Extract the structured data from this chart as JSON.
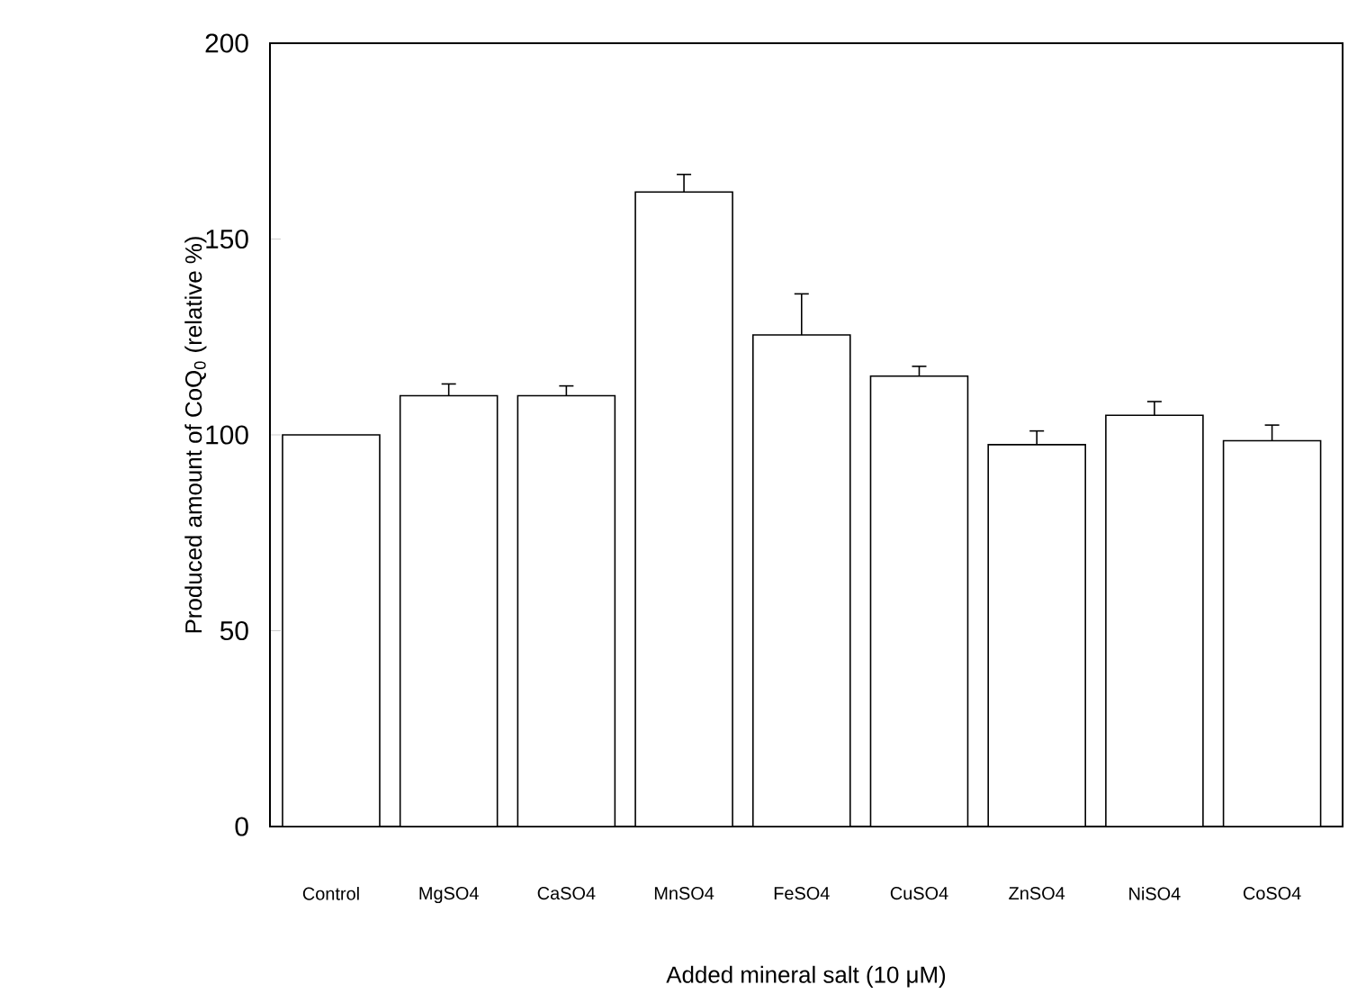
{
  "chart_data": {
    "type": "bar",
    "xlabel": "Added mineral salt (10 μM)",
    "ylabel": "Produced amount of CoQ$_{0}$ (relative %)",
    "categories": [
      "Control",
      "MgSO4",
      "CaSO4",
      "MnSO4",
      "FeSO4",
      "CuSO4",
      "ZnSO4",
      "NiSO4",
      "CoSO4"
    ],
    "values": [
      100,
      110,
      110,
      162,
      125.5,
      115,
      97.5,
      105,
      98.5
    ],
    "errors": [
      null,
      3,
      2.5,
      4.5,
      10.5,
      2.5,
      3.5,
      3.5,
      4
    ],
    "color": "#ffffff",
    "ylim": [
      0,
      200
    ],
    "yticks": [
      0,
      50,
      100,
      150,
      200
    ],
    "grid": false
  }
}
